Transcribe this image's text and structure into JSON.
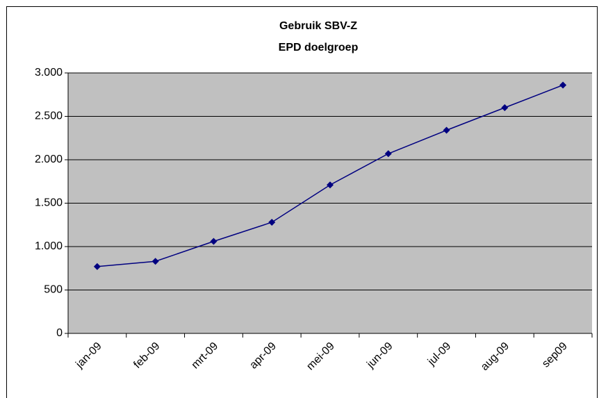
{
  "chart_data": {
    "type": "line",
    "title": [
      "Gebruik SBV-Z",
      "EPD doelgroep"
    ],
    "categories": [
      "jan-09",
      "feb-09",
      "mrt-09",
      "apr-09",
      "mei-09",
      "jun-09",
      "jul-09",
      "aug-09",
      "sep09"
    ],
    "values": [
      770,
      830,
      1060,
      1280,
      1710,
      2070,
      2340,
      2600,
      2860
    ],
    "color": "#000080",
    "ylim": [
      0,
      3000
    ],
    "yticks": [
      0,
      500,
      {
        "value": 1000,
        "label": "1.000"
      },
      {
        "value": 1500,
        "label": "1.500"
      },
      {
        "value": 2000,
        "label": "2.000"
      },
      {
        "value": 2500,
        "label": "2.500"
      },
      {
        "value": 3000,
        "label": "3.000"
      }
    ],
    "grid": true
  }
}
